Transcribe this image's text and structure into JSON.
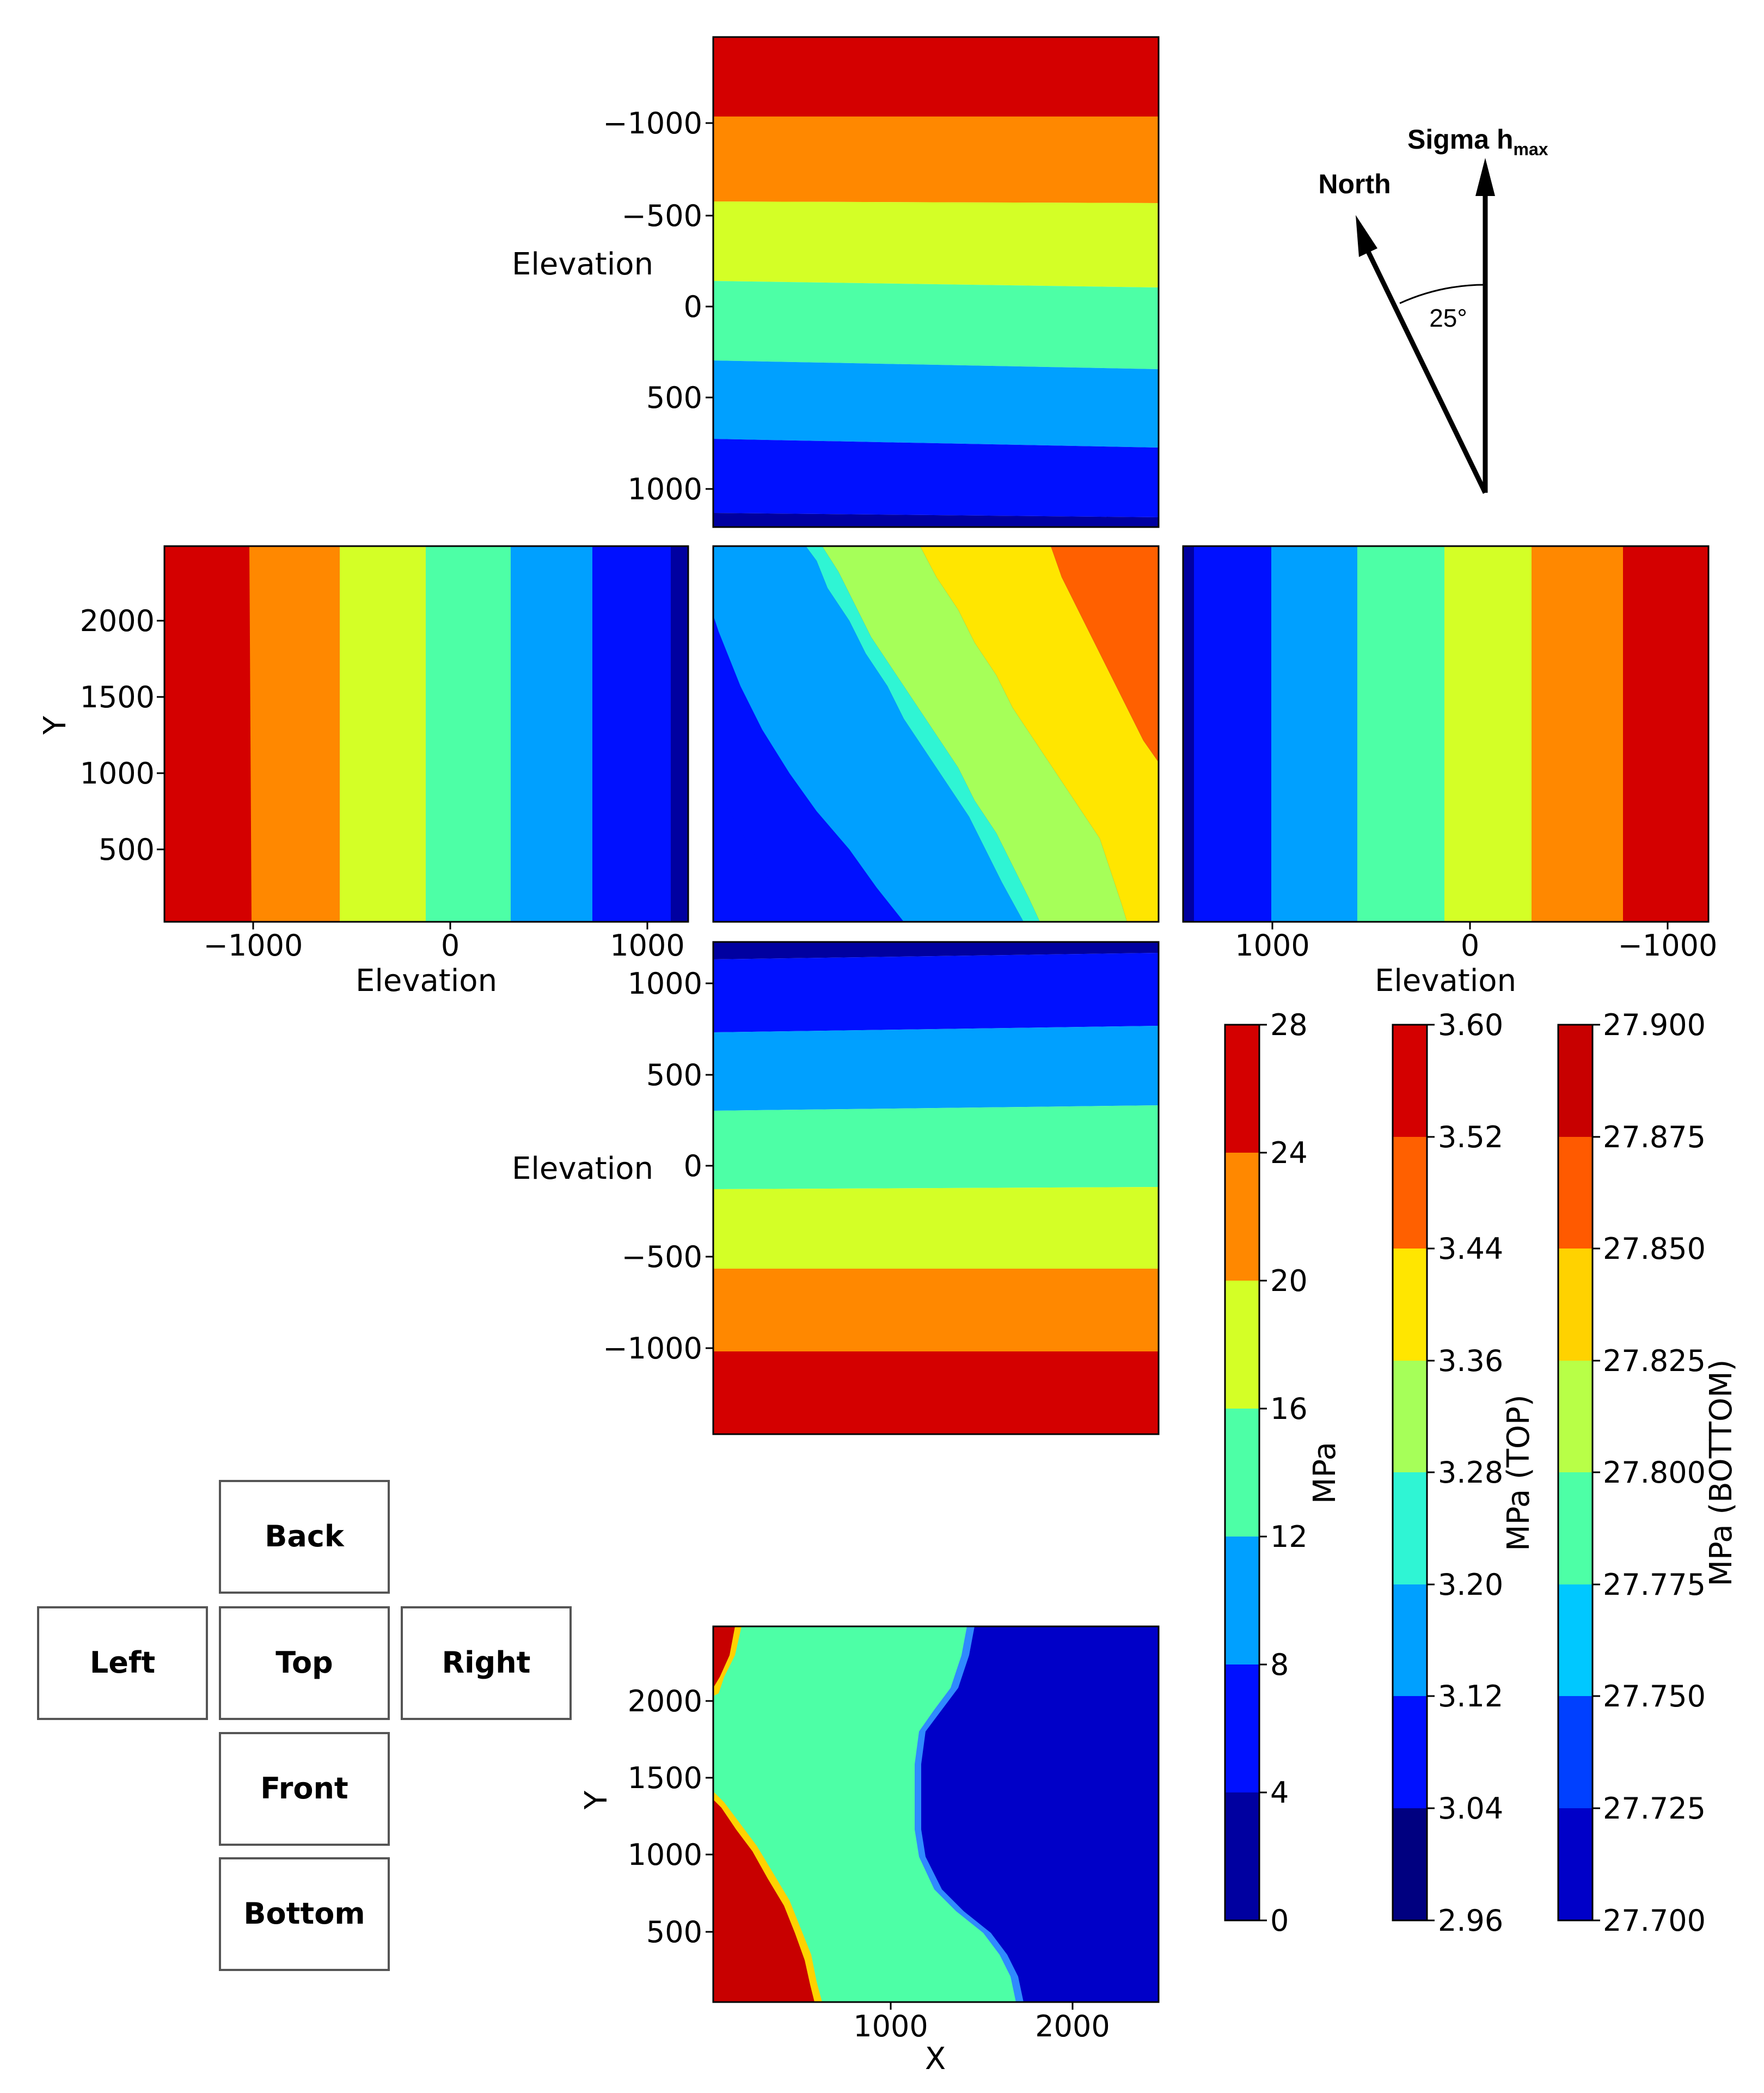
{
  "figure": {
    "panels": {
      "back": {
        "ylabel": "Elevation",
        "yticks": [
          "−1000",
          "−500",
          "0",
          "500",
          "1000"
        ]
      },
      "left": {
        "ylabel": "Y",
        "yticks": [
          "2000",
          "1500",
          "1000",
          "500"
        ],
        "xlabel": "Elevation",
        "xticks": [
          "−1000",
          "0",
          "1000"
        ]
      },
      "right": {
        "xlabel": "Elevation",
        "xticks": [
          "1000",
          "0",
          "−1000"
        ]
      },
      "front": {
        "ylabel": "Elevation",
        "yticks": [
          "1000",
          "500",
          "0",
          "−500",
          "−1000"
        ]
      },
      "bottom": {
        "ylabel": "Y",
        "yticks": [
          "2000",
          "1500",
          "1000",
          "500"
        ],
        "xlabel": "X",
        "xticks": [
          "1000",
          "2000"
        ]
      }
    },
    "colorbars": [
      {
        "label": "MPa",
        "ticks": [
          "28",
          "24",
          "20",
          "16",
          "12",
          "8",
          "4",
          "0"
        ],
        "colors": [
          "#0000a0",
          "#0010ff",
          "#00a0ff",
          "#4dffa6",
          "#d4ff26",
          "#ff8800",
          "#d40000"
        ]
      },
      {
        "label": "MPa (TOP)",
        "ticks": [
          "3.60",
          "3.52",
          "3.44",
          "3.36",
          "3.28",
          "3.20",
          "3.12",
          "3.04",
          "2.96"
        ],
        "colors": [
          "#000080",
          "#0010ff",
          "#00a0ff",
          "#2ff5d4",
          "#a6ff59",
          "#ffe600",
          "#ff6000",
          "#d40000"
        ]
      },
      {
        "label": "MPa (BOTTOM)",
        "ticks": [
          "27.900",
          "27.875",
          "27.850",
          "27.825",
          "27.800",
          "27.775",
          "27.750",
          "27.725",
          "27.700"
        ],
        "colors": [
          "#0000c8",
          "#0040ff",
          "#00c8ff",
          "#4dffa6",
          "#b8ff47",
          "#ffd200",
          "#ff5a00",
          "#c80000"
        ]
      }
    ],
    "compass": {
      "north_label": "North",
      "sigma_label": "Sigma h",
      "sigma_sub": "max",
      "angle_label": "25°"
    },
    "legend": {
      "back": "Back",
      "left": "Left",
      "top": "Top",
      "right": "Right",
      "front": "Front",
      "bottom": "Bottom"
    }
  },
  "chart_data": {
    "type": "heatmap",
    "title": "",
    "description_units": "MPa",
    "views": [
      {
        "view": "back",
        "x_axis": "X",
        "y_axis": "Elevation",
        "ylim": [
          1200,
          -1450
        ],
        "bands": [
          {
            "mpa_range": [
              24,
              28
            ],
            "color": "#d40000",
            "elevation_range": [
              -1450,
              -1000
            ]
          },
          {
            "mpa_range": [
              20,
              24
            ],
            "color": "#ff8800",
            "elevation_range": [
              -1000,
              -560
            ]
          },
          {
            "mpa_range": [
              16,
              20
            ],
            "color": "#d4ff26",
            "elevation_range": [
              -560,
              -120
            ]
          },
          {
            "mpa_range": [
              12,
              16
            ],
            "color": "#4dffa6",
            "elevation_range": [
              -120,
              320
            ]
          },
          {
            "mpa_range": [
              8,
              12
            ],
            "color": "#00a0ff",
            "elevation_range": [
              320,
              760
            ]
          },
          {
            "mpa_range": [
              4,
              8
            ],
            "color": "#0010ff",
            "elevation_range": [
              760,
              1150
            ]
          },
          {
            "mpa_range": [
              0,
              4
            ],
            "color": "#0000a0",
            "elevation_range": [
              1150,
              1200
            ]
          }
        ]
      },
      {
        "view": "left",
        "x_axis": "Elevation",
        "y_axis": "Y",
        "xlim": [
          -1450,
          1200
        ],
        "ylim": [
          0,
          2450
        ],
        "bands": [
          {
            "mpa_range": [
              24,
              28
            ],
            "color": "#d40000",
            "elevation_range": [
              -1450,
              -1010
            ]
          },
          {
            "mpa_range": [
              20,
              24
            ],
            "color": "#ff8800",
            "elevation_range": [
              -1010,
              -560
            ]
          },
          {
            "mpa_range": [
              16,
              20
            ],
            "color": "#d4ff26",
            "elevation_range": [
              -560,
              -130
            ]
          },
          {
            "mpa_range": [
              12,
              16
            ],
            "color": "#4dffa6",
            "elevation_range": [
              -130,
              300
            ]
          },
          {
            "mpa_range": [
              8,
              12
            ],
            "color": "#00a0ff",
            "elevation_range": [
              300,
              720
            ]
          },
          {
            "mpa_range": [
              4,
              8
            ],
            "color": "#0010ff",
            "elevation_range": [
              720,
              1100
            ]
          },
          {
            "mpa_range": [
              0,
              4
            ],
            "color": "#0000a0",
            "elevation_range": [
              1100,
              1200
            ]
          }
        ]
      },
      {
        "view": "top",
        "x_axis": "X",
        "y_axis": "Y",
        "bands": [
          {
            "mpa_range": [
              2.96,
              3.04
            ],
            "color": "#000080"
          },
          {
            "mpa_range": [
              3.04,
              3.12
            ],
            "color": "#0010ff"
          },
          {
            "mpa_range": [
              3.12,
              3.2
            ],
            "color": "#00a0ff"
          },
          {
            "mpa_range": [
              3.2,
              3.28
            ],
            "color": "#2ff5d4"
          },
          {
            "mpa_range": [
              3.28,
              3.36
            ],
            "color": "#a6ff59"
          },
          {
            "mpa_range": [
              3.36,
              3.44
            ],
            "color": "#ffe600"
          },
          {
            "mpa_range": [
              3.44,
              3.52
            ],
            "color": "#ff6000"
          }
        ]
      },
      {
        "view": "right",
        "x_axis": "Elevation",
        "y_axis": "Y",
        "xlim": [
          1450,
          -1200
        ],
        "bands": [
          {
            "mpa_range": [
              0,
              4
            ],
            "color": "#0000a0",
            "elevation_range": [
              1450,
              1400
            ]
          },
          {
            "mpa_range": [
              4,
              8
            ],
            "color": "#0010ff",
            "elevation_range": [
              1400,
              1000
            ]
          },
          {
            "mpa_range": [
              8,
              12
            ],
            "color": "#00a0ff",
            "elevation_range": [
              1000,
              570
            ]
          },
          {
            "mpa_range": [
              12,
              16
            ],
            "color": "#4dffa6",
            "elevation_range": [
              570,
              130
            ]
          },
          {
            "mpa_range": [
              16,
              20
            ],
            "color": "#d4ff26",
            "elevation_range": [
              130,
              -310
            ]
          },
          {
            "mpa_range": [
              20,
              24
            ],
            "color": "#ff8800",
            "elevation_range": [
              -310,
              -770
            ]
          },
          {
            "mpa_range": [
              24,
              28
            ],
            "color": "#d40000",
            "elevation_range": [
              -770,
              -1200
            ]
          }
        ]
      },
      {
        "view": "front",
        "x_axis": "X",
        "y_axis": "Elevation",
        "ylim": [
          1200,
          -1450
        ],
        "bands": [
          {
            "mpa_range": [
              0,
              4
            ],
            "color": "#0000a0",
            "elevation_range": [
              1200,
              1150
            ]
          },
          {
            "mpa_range": [
              4,
              8
            ],
            "color": "#0010ff",
            "elevation_range": [
              1150,
              720
            ]
          },
          {
            "mpa_range": [
              8,
              12
            ],
            "color": "#00a0ff",
            "elevation_range": [
              720,
              300
            ]
          },
          {
            "mpa_range": [
              12,
              16
            ],
            "color": "#4dffa6",
            "elevation_range": [
              300,
              -130
            ]
          },
          {
            "mpa_range": [
              16,
              20
            ],
            "color": "#d4ff26",
            "elevation_range": [
              -130,
              -560
            ]
          },
          {
            "mpa_range": [
              20,
              24
            ],
            "color": "#ff8800",
            "elevation_range": [
              -560,
              -1000
            ]
          },
          {
            "mpa_range": [
              24,
              28
            ],
            "color": "#d40000",
            "elevation_range": [
              -1000,
              -1450
            ]
          }
        ]
      },
      {
        "view": "bottom",
        "x_axis": "X",
        "y_axis": "Y",
        "xlim": [
          0,
          2450
        ],
        "ylim": [
          0,
          2450
        ],
        "bands": [
          {
            "mpa_range": [
              27.875,
              27.9
            ],
            "color": "#c80000"
          },
          {
            "mpa_range": [
              27.775,
              27.8
            ],
            "color": "#4dffa6"
          },
          {
            "mpa_range": [
              27.7,
              27.725
            ],
            "color": "#0000c8"
          }
        ]
      }
    ],
    "colorbars": [
      {
        "label": "MPa",
        "range": [
          0,
          28
        ],
        "step": 4
      },
      {
        "label": "MPa (TOP)",
        "range": [
          2.96,
          3.6
        ],
        "step": 0.08
      },
      {
        "label": "MPa (BOTTOM)",
        "range": [
          27.7,
          27.9
        ],
        "step": 0.025
      }
    ]
  }
}
